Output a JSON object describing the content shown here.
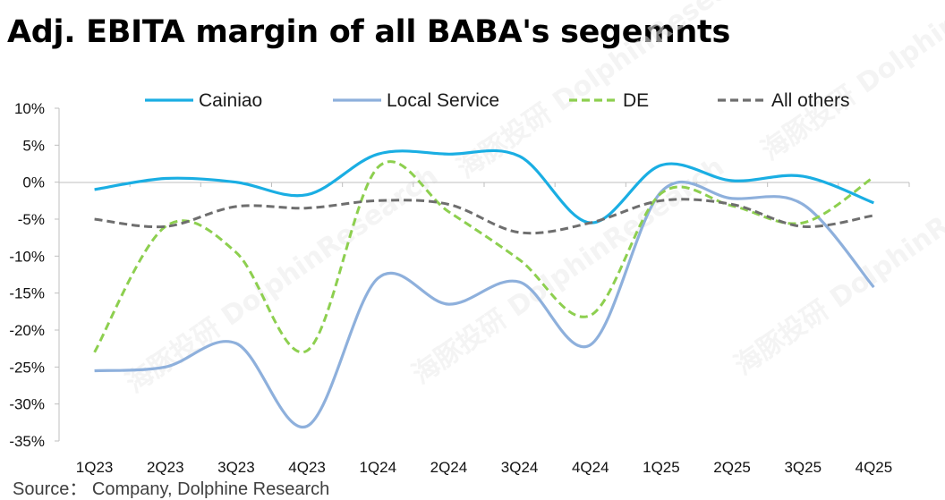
{
  "chart_data": {
    "type": "line",
    "title": "Adj. EBITA margin of all BABA's segemnts",
    "categories": [
      "1Q23",
      "2Q23",
      "3Q23",
      "4Q23",
      "1Q24",
      "2Q24",
      "3Q24",
      "4Q24",
      "1Q25",
      "2Q25",
      "3Q25",
      "4Q25"
    ],
    "series": [
      {
        "name": "Cainiao",
        "color": "#1AAEE3",
        "dash": "solid",
        "values": [
          -1,
          0.5,
          0,
          -1.7,
          3.8,
          3.8,
          3.5,
          -5.5,
          2.3,
          0.2,
          0.8,
          -2.8
        ]
      },
      {
        "name": "Local Service",
        "color": "#8EB0DC",
        "dash": "solid",
        "values": [
          -25.5,
          -25,
          -21.8,
          -33,
          -13,
          -16.5,
          -13.5,
          -22,
          -1.3,
          -2.2,
          -3,
          -14.2
        ]
      },
      {
        "name": "DE",
        "color": "#8DCF4F",
        "dash": "dashed",
        "values": [
          -23,
          -6,
          -9.5,
          -22.8,
          2,
          -4,
          -10.5,
          -18,
          -1.5,
          -3.2,
          -5.5,
          0.7
        ]
      },
      {
        "name": "All others",
        "color": "#6E6E6E",
        "dash": "dashed",
        "values": [
          -5,
          -6,
          -3.3,
          -3.5,
          -2.5,
          -3,
          -6.8,
          -5.5,
          -2.5,
          -3,
          -6,
          -4.5
        ]
      }
    ],
    "y_ticks": [
      "10%",
      "5%",
      "0%",
      "-5%",
      "-10%",
      "-15%",
      "-20%",
      "-25%",
      "-30%",
      "-35%"
    ],
    "ylim": [
      -35,
      10
    ],
    "y_unit": "%",
    "legend_position": "top",
    "grid": false
  },
  "watermark": "海豚投研 DolphinResearch",
  "source": "Source： Company, Dolphine Research"
}
